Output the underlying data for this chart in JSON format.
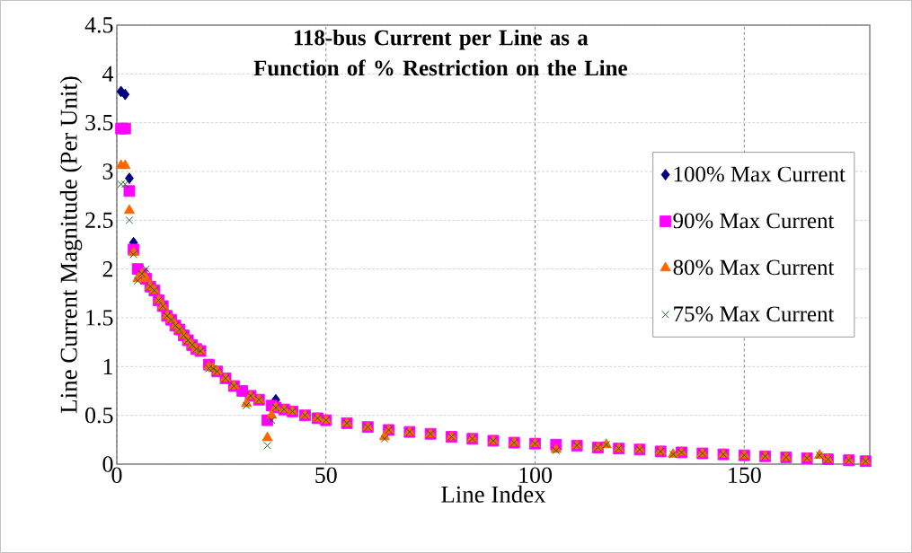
{
  "chart_data": {
    "type": "scatter",
    "title": "118-bus Current per Line as a Function of % Restriction on the Line",
    "xlabel": "Line Index",
    "ylabel": "Line Current Magnitude (Per Unit)",
    "xlim": [
      0,
      180
    ],
    "ylim": [
      0,
      4.5
    ],
    "xticks": [
      0,
      50,
      100,
      150
    ],
    "yticks": [
      0,
      0.5,
      1,
      1.5,
      2,
      2.5,
      3,
      3.5,
      4,
      4.5
    ],
    "grid": true,
    "legend": "right",
    "series": [
      {
        "name": "100% Max Current",
        "color": "#000080",
        "marker": "diamond",
        "x": [
          1,
          2,
          3,
          4,
          38
        ],
        "values": [
          3.82,
          3.79,
          2.93,
          2.27,
          0.66
        ]
      },
      {
        "name": "90% Max Current",
        "color": "#ff00ff",
        "marker": "square",
        "x": [
          1,
          2,
          3,
          4,
          5,
          6,
          7,
          8,
          9,
          10,
          11,
          12,
          13,
          14,
          15,
          16,
          17,
          18,
          19,
          20,
          22,
          24,
          26,
          28,
          30,
          32,
          34,
          36,
          37,
          38,
          40,
          42,
          45,
          48,
          50,
          55,
          60,
          65,
          70,
          75,
          80,
          85,
          90,
          95,
          100,
          105,
          110,
          115,
          120,
          125,
          130,
          135,
          140,
          145,
          150,
          155,
          160,
          165,
          170,
          175,
          179
        ],
        "values": [
          3.44,
          3.44,
          2.8,
          2.2,
          2.0,
          1.95,
          1.9,
          1.82,
          1.78,
          1.68,
          1.62,
          1.52,
          1.48,
          1.42,
          1.38,
          1.32,
          1.27,
          1.22,
          1.18,
          1.16,
          1.02,
          0.95,
          0.88,
          0.8,
          0.75,
          0.7,
          0.66,
          0.45,
          0.6,
          0.58,
          0.56,
          0.54,
          0.5,
          0.47,
          0.45,
          0.42,
          0.38,
          0.35,
          0.33,
          0.31,
          0.28,
          0.26,
          0.24,
          0.22,
          0.21,
          0.2,
          0.19,
          0.17,
          0.16,
          0.15,
          0.13,
          0.12,
          0.11,
          0.1,
          0.09,
          0.08,
          0.07,
          0.06,
          0.05,
          0.04,
          0.03
        ]
      },
      {
        "name": "80% Max Current",
        "color": "#ff6600",
        "marker": "triangle",
        "x": [
          1,
          2,
          3,
          4,
          5,
          6,
          7,
          8,
          9,
          10,
          11,
          12,
          13,
          14,
          15,
          16,
          17,
          18,
          19,
          20,
          22,
          23,
          24,
          26,
          28,
          31,
          32,
          34,
          36,
          37,
          38,
          40,
          42,
          45,
          48,
          50,
          55,
          60,
          64,
          65,
          70,
          75,
          80,
          85,
          90,
          95,
          100,
          105,
          110,
          115,
          117,
          120,
          125,
          130,
          133,
          135,
          140,
          145,
          150,
          155,
          160,
          165,
          168,
          170,
          175,
          179
        ],
        "values": [
          3.06,
          3.06,
          2.6,
          2.17,
          1.9,
          1.95,
          1.9,
          1.82,
          1.78,
          1.68,
          1.62,
          1.52,
          1.48,
          1.42,
          1.38,
          1.32,
          1.27,
          1.22,
          1.18,
          1.16,
          1.0,
          0.98,
          0.95,
          0.88,
          0.8,
          0.62,
          0.7,
          0.66,
          0.27,
          0.5,
          0.58,
          0.56,
          0.54,
          0.5,
          0.47,
          0.45,
          0.42,
          0.38,
          0.28,
          0.35,
          0.33,
          0.31,
          0.28,
          0.26,
          0.24,
          0.22,
          0.21,
          0.15,
          0.19,
          0.17,
          0.2,
          0.16,
          0.15,
          0.13,
          0.1,
          0.12,
          0.11,
          0.1,
          0.09,
          0.08,
          0.07,
          0.06,
          0.09,
          0.05,
          0.04,
          0.03
        ]
      },
      {
        "name": "75% Max Current",
        "color": "#006400",
        "marker": "cross",
        "x": [
          1,
          2,
          3,
          4,
          5,
          6,
          7,
          8,
          9,
          10,
          11,
          12,
          13,
          14,
          15,
          16,
          17,
          18,
          19,
          20,
          22,
          23,
          24,
          26,
          28,
          31,
          32,
          34,
          36,
          37,
          38,
          40,
          42,
          45,
          48,
          50,
          55,
          60,
          64,
          65,
          70,
          75,
          80,
          85,
          90,
          95,
          100,
          105,
          110,
          115,
          117,
          120,
          125,
          130,
          133,
          135,
          140,
          145,
          150,
          155,
          160,
          165,
          168,
          170,
          175,
          179
        ],
        "values": [
          2.87,
          2.87,
          2.5,
          2.15,
          1.88,
          1.95,
          2.0,
          1.82,
          1.78,
          1.68,
          1.62,
          1.52,
          1.48,
          1.42,
          1.38,
          1.32,
          1.27,
          1.22,
          1.18,
          1.16,
          0.98,
          0.98,
          0.95,
          0.88,
          0.8,
          0.6,
          0.7,
          0.66,
          0.19,
          0.45,
          0.58,
          0.56,
          0.54,
          0.5,
          0.47,
          0.45,
          0.42,
          0.38,
          0.26,
          0.35,
          0.33,
          0.31,
          0.28,
          0.26,
          0.24,
          0.22,
          0.21,
          0.14,
          0.19,
          0.17,
          0.2,
          0.16,
          0.15,
          0.13,
          0.1,
          0.12,
          0.11,
          0.1,
          0.09,
          0.08,
          0.07,
          0.06,
          0.09,
          0.05,
          0.04,
          0.03
        ]
      }
    ]
  }
}
